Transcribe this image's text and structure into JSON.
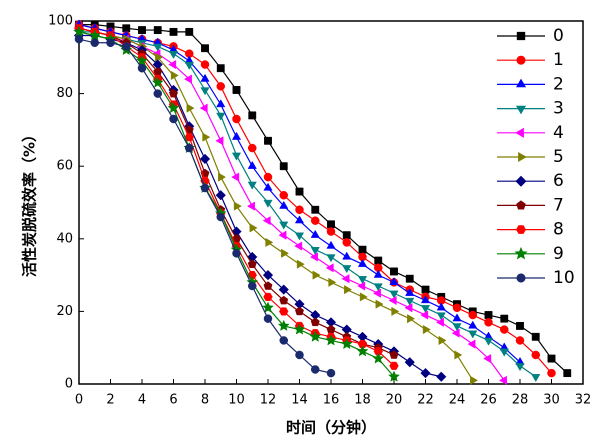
{
  "chart_data": {
    "type": "line",
    "x_label": "时间（分钟）",
    "y_label": "活性炭脱硫效率（%）",
    "x": [
      0,
      1,
      2,
      3,
      4,
      5,
      6,
      7,
      8,
      9,
      10,
      11,
      12,
      13,
      14,
      15,
      16,
      17,
      18,
      19,
      20,
      21,
      22,
      23,
      24,
      25,
      26,
      27,
      28,
      29,
      30,
      31
    ],
    "xlim": [
      0,
      32
    ],
    "xticks": [
      0,
      2,
      4,
      6,
      8,
      10,
      12,
      14,
      16,
      18,
      20,
      22,
      24,
      26,
      28,
      30,
      32
    ],
    "ylim": [
      0,
      100
    ],
    "yticks": [
      0,
      20,
      40,
      60,
      80,
      100
    ],
    "legend": "upper right",
    "series": [
      {
        "name": "0",
        "color": "#000000",
        "marker": "square",
        "values": [
          99,
          99,
          98.5,
          98,
          97.5,
          97.5,
          97,
          97,
          92.5,
          87,
          81,
          74,
          67,
          60,
          53,
          48,
          44,
          41,
          37,
          34,
          31,
          29,
          26,
          24,
          22,
          20,
          19,
          18,
          16,
          13,
          7,
          3
        ]
      },
      {
        "name": "1",
        "color": "#ff0000",
        "marker": "circle",
        "values": [
          99,
          98,
          97,
          96,
          95,
          94,
          93,
          91,
          88,
          82,
          73,
          65,
          57,
          52,
          48,
          45,
          42,
          39,
          35,
          32,
          28,
          26,
          24,
          23,
          21,
          19,
          17,
          15,
          12,
          8,
          3,
          null
        ]
      },
      {
        "name": "2",
        "color": "#0000ff",
        "marker": "triangle-up",
        "values": [
          99,
          98,
          97,
          96,
          95,
          94,
          92,
          89,
          84,
          77,
          68,
          60,
          54,
          49,
          45,
          41,
          38,
          35,
          33,
          30,
          28,
          25,
          23,
          21,
          18,
          16,
          13,
          10,
          6,
          null,
          null,
          null
        ]
      },
      {
        "name": "3",
        "color": "#008080",
        "marker": "triangle-down",
        "values": [
          97,
          97,
          96,
          95,
          94,
          93,
          91,
          88,
          81,
          74,
          63,
          55,
          50,
          44,
          41,
          37,
          35,
          32,
          29,
          27,
          25,
          23,
          21,
          19,
          16,
          14,
          12,
          9,
          5,
          2,
          null,
          null
        ]
      },
      {
        "name": "4",
        "color": "#ff00ff",
        "marker": "triangle-left",
        "values": [
          98,
          97,
          96,
          95,
          93,
          91,
          88,
          84,
          76,
          67,
          57,
          49,
          45,
          41,
          38,
          35,
          32,
          29,
          27,
          25,
          23,
          21,
          19,
          17,
          14,
          11,
          7,
          1,
          null,
          null,
          null,
          null
        ]
      },
      {
        "name": "5",
        "color": "#808000",
        "marker": "triangle-right",
        "values": [
          98,
          97,
          96,
          95,
          93,
          90,
          85,
          76,
          68,
          57,
          49,
          43,
          39,
          36,
          33,
          30,
          28,
          26,
          24,
          22,
          20,
          18,
          15,
          12,
          8,
          1,
          null,
          null,
          null,
          null,
          null,
          null
        ]
      },
      {
        "name": "6",
        "color": "#000080",
        "marker": "diamond",
        "values": [
          96,
          96,
          95,
          94,
          92,
          88,
          81,
          71,
          62,
          52,
          42,
          35,
          30,
          26,
          22,
          19,
          17,
          15,
          13,
          11,
          9,
          6,
          3,
          2,
          null,
          null,
          null,
          null,
          null,
          null,
          null,
          null
        ]
      },
      {
        "name": "7",
        "color": "#800000",
        "marker": "pentagon",
        "values": [
          98,
          97,
          96,
          94,
          91,
          86,
          80,
          70,
          58,
          48,
          40,
          33,
          27,
          23,
          20,
          17,
          15,
          13,
          11,
          10,
          8,
          null,
          null,
          null,
          null,
          null,
          null,
          null,
          null,
          null,
          null,
          null
        ]
      },
      {
        "name": "8",
        "color": "#ff0000",
        "marker": "hexagon",
        "values": [
          98,
          97,
          96,
          93,
          90,
          84,
          77,
          68,
          56,
          47,
          38,
          30,
          24,
          20,
          16,
          14,
          13,
          12,
          11,
          9,
          5,
          null,
          null,
          null,
          null,
          null,
          null,
          null,
          null,
          null,
          null,
          null
        ]
      },
      {
        "name": "9",
        "color": "#008000",
        "marker": "star",
        "values": [
          97,
          96,
          95,
          92,
          89,
          83,
          76,
          65,
          54,
          47,
          37,
          28,
          21,
          16,
          15,
          13,
          12,
          11,
          9,
          7,
          2,
          null,
          null,
          null,
          null,
          null,
          null,
          null,
          null,
          null,
          null,
          null
        ]
      },
      {
        "name": "10",
        "color": "#1a2a6c",
        "marker": "sphere",
        "values": [
          95,
          94,
          94,
          93,
          87,
          80,
          73,
          65,
          54,
          46,
          36,
          27,
          18,
          12,
          8,
          4,
          3,
          null,
          null,
          null,
          null,
          null,
          null,
          null,
          null,
          null,
          null,
          null,
          null,
          null,
          null,
          null
        ]
      }
    ]
  }
}
